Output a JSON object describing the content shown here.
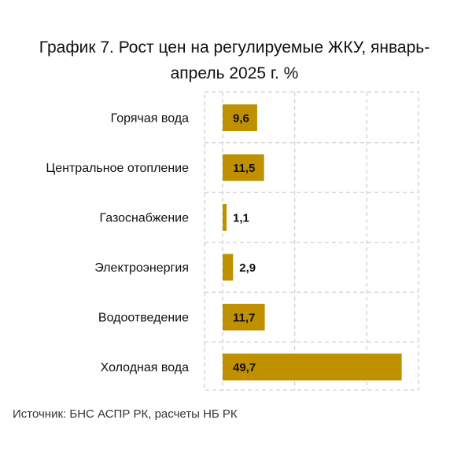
{
  "chart_data": {
    "type": "bar",
    "orientation": "horizontal",
    "title": "График 7. Рост цен на регулируемые ЖКУ, январь-апрель 2025 г. %",
    "categories": [
      "Горячая вода",
      "Центральное отопление",
      "Газоснабжение",
      "Электроэнергия",
      "Водоотведение",
      "Холодная вода"
    ],
    "values": [
      9.6,
      11.5,
      1.1,
      2.9,
      11.7,
      49.7
    ],
    "value_labels": [
      "9,6",
      "11,5",
      "1,1",
      "2,9",
      "11,7",
      "49,7"
    ],
    "xlim": [
      0,
      60
    ],
    "grid": "dashed vertical lines",
    "bar_color": "#BF9000",
    "source": "Источник: БНС АСПР РК, расчеты НБ РК"
  }
}
